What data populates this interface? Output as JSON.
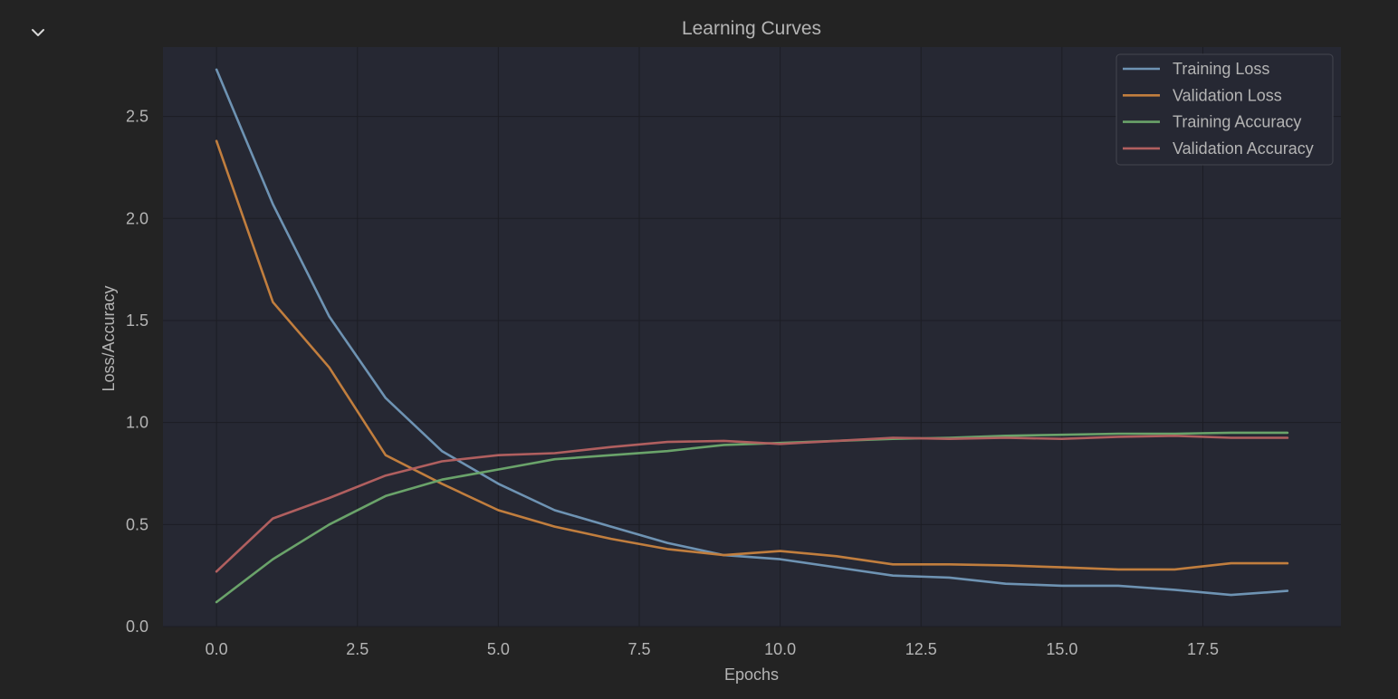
{
  "toolbar": {
    "collapse_icon": "chevron-down-icon"
  },
  "colors": {
    "page_bg": "#232323",
    "plot_bg": "#262833",
    "grid": "#1c1d24",
    "text": "#b4b4b4",
    "legend_bg": "#262833",
    "legend_border": "#44464f"
  },
  "chart_data": {
    "type": "line",
    "title": "Learning Curves",
    "xlabel": "Epochs",
    "ylabel": "Loss/Accuracy",
    "xlim": [
      -0.95,
      19.95
    ],
    "ylim": [
      0,
      2.84
    ],
    "xticks": [
      0.0,
      2.5,
      5.0,
      7.5,
      10.0,
      12.5,
      15.0,
      17.5
    ],
    "xtick_labels": [
      "0.0",
      "2.5",
      "5.0",
      "7.5",
      "10.0",
      "12.5",
      "15.0",
      "17.5"
    ],
    "yticks": [
      0.0,
      0.5,
      1.0,
      1.5,
      2.0,
      2.5
    ],
    "ytick_labels": [
      "0.0",
      "0.5",
      "1.0",
      "1.5",
      "2.0",
      "2.5"
    ],
    "grid": true,
    "legend_position": "top-right",
    "x": [
      0,
      1,
      2,
      3,
      4,
      5,
      6,
      7,
      8,
      9,
      10,
      11,
      12,
      13,
      14,
      15,
      16,
      17,
      18,
      19
    ],
    "series": [
      {
        "name": "Training Loss",
        "color": "#6e93b3",
        "values": [
          2.73,
          2.07,
          1.52,
          1.12,
          0.86,
          0.7,
          0.57,
          0.49,
          0.41,
          0.35,
          0.33,
          0.29,
          0.25,
          0.24,
          0.21,
          0.2,
          0.2,
          0.18,
          0.155,
          0.175
        ]
      },
      {
        "name": "Validation Loss",
        "color": "#c17e3e",
        "values": [
          2.38,
          1.59,
          1.27,
          0.84,
          0.7,
          0.57,
          0.49,
          0.43,
          0.38,
          0.35,
          0.37,
          0.345,
          0.305,
          0.305,
          0.3,
          0.29,
          0.28,
          0.28,
          0.31,
          0.31
        ]
      },
      {
        "name": "Training Accuracy",
        "color": "#6aa36a",
        "values": [
          0.12,
          0.33,
          0.5,
          0.64,
          0.72,
          0.77,
          0.82,
          0.84,
          0.86,
          0.89,
          0.9,
          0.91,
          0.92,
          0.925,
          0.935,
          0.94,
          0.945,
          0.945,
          0.95,
          0.95
        ]
      },
      {
        "name": "Validation Accuracy",
        "color": "#b05f5f",
        "values": [
          0.27,
          0.53,
          0.63,
          0.74,
          0.81,
          0.84,
          0.85,
          0.88,
          0.905,
          0.91,
          0.895,
          0.91,
          0.925,
          0.92,
          0.925,
          0.92,
          0.93,
          0.935,
          0.925,
          0.925
        ]
      }
    ]
  }
}
